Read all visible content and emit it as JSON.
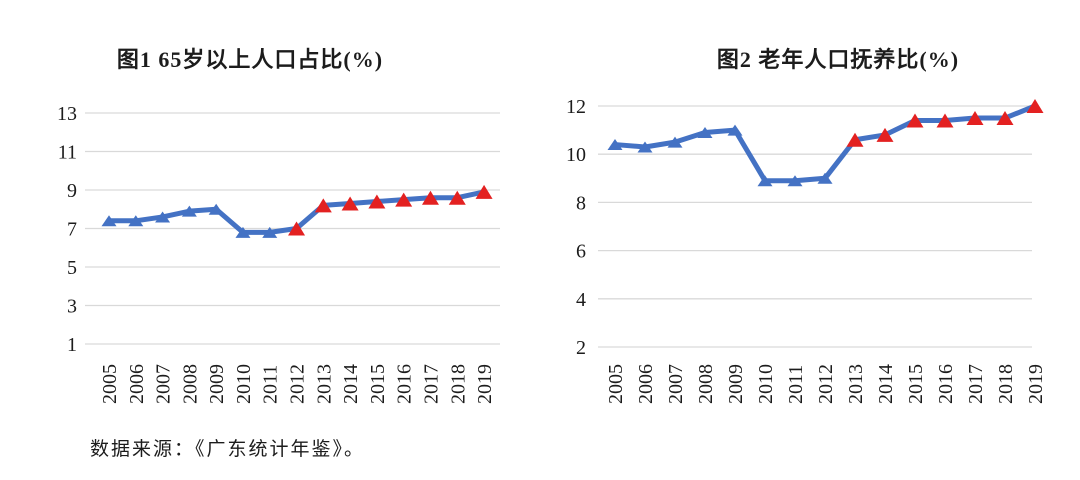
{
  "page": {
    "background": "#ffffff"
  },
  "source_note": "数据来源：《广东统计年鉴》。",
  "colors": {
    "line": "#4472c4",
    "marker_blue": "#4472c4",
    "marker_red": "#e32121",
    "gridline": "#d9d9d9",
    "text": "#1c1c1c"
  },
  "chart_data": [
    {
      "type": "line",
      "title": "图1  65岁以上人口占比(%)",
      "categories": [
        "2005",
        "2006",
        "2007",
        "2008",
        "2009",
        "2010",
        "2011",
        "2012",
        "2013",
        "2014",
        "2015",
        "2016",
        "2017",
        "2018",
        "2019"
      ],
      "series": [
        {
          "name": "65岁以上人口占比(%)",
          "values": [
            7.4,
            7.4,
            7.6,
            7.9,
            8.0,
            6.8,
            6.8,
            7.0,
            8.2,
            8.3,
            8.4,
            8.5,
            8.6,
            8.6,
            8.9
          ],
          "red_from_index": 7
        }
      ],
      "xlabel": "",
      "ylabel": "",
      "ylim": [
        1,
        13
      ],
      "yticks": [
        1,
        3,
        5,
        7,
        9,
        11,
        13
      ],
      "grid": true,
      "legend": false,
      "marker": "triangle"
    },
    {
      "type": "line",
      "title": "图2  老年人口抚养比(%)",
      "categories": [
        "2005",
        "2006",
        "2007",
        "2008",
        "2009",
        "2010",
        "2011",
        "2012",
        "2013",
        "2014",
        "2015",
        "2016",
        "2017",
        "2018",
        "2019"
      ],
      "series": [
        {
          "name": "老年人口抚养比(%)",
          "values": [
            10.4,
            10.3,
            10.5,
            10.9,
            11.0,
            8.9,
            8.9,
            9.0,
            10.6,
            10.8,
            11.4,
            11.4,
            11.5,
            11.5,
            12.0
          ],
          "red_from_index": 8
        }
      ],
      "xlabel": "",
      "ylabel": "",
      "ylim": [
        2,
        12
      ],
      "yticks": [
        2,
        4,
        6,
        8,
        10,
        12
      ],
      "grid": true,
      "legend": false,
      "marker": "triangle"
    }
  ]
}
